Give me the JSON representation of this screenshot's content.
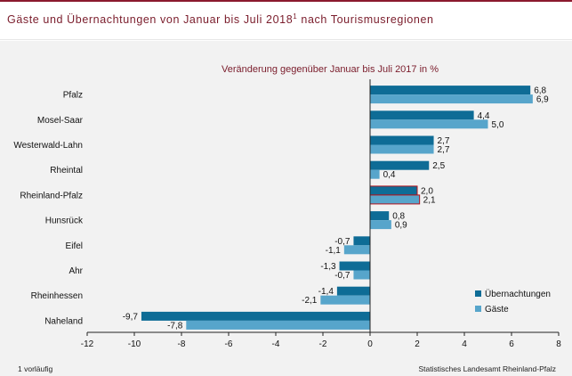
{
  "title_main": "Gäste und Übernachtungen von Januar bis Juli 2018",
  "title_sup": "1",
  "title_rest": " nach Tourismusregionen",
  "footnote": "1 vorläufig",
  "source": "Statistisches Landesamt Rheinland-Pfalz",
  "colors": {
    "overnight": "#0e6c96",
    "guests": "#57a5cb",
    "highlight_border": "#b5121b",
    "accent": "#7a1c2b"
  },
  "chart_data": {
    "type": "bar",
    "orientation": "horizontal",
    "title": "Veränderung gegenüber Januar bis Juli 2017 in %",
    "categories": [
      "Pfalz",
      "Mosel-Saar",
      "Westerwald-Lahn",
      "Rheintal",
      "Rheinland-Pfalz",
      "Hunsrück",
      "Eifel",
      "Ahr",
      "Rheinhessen",
      "Naheland"
    ],
    "series": [
      {
        "name": "Übernachtungen",
        "values": [
          6.8,
          4.4,
          2.7,
          2.5,
          2.0,
          0.8,
          -0.7,
          -1.3,
          -1.4,
          -9.7
        ],
        "labels": [
          "6,8",
          "4,4",
          "2,7",
          "2,5",
          "2,0",
          "0,8",
          "-0,7",
          "-1,3",
          "-1,4",
          "-9,7"
        ]
      },
      {
        "name": "Gäste",
        "values": [
          6.9,
          5.0,
          2.7,
          0.4,
          2.1,
          0.9,
          -1.1,
          -0.7,
          -2.1,
          -7.8
        ],
        "labels": [
          "6,9",
          "5,0",
          "2,7",
          "0,4",
          "2,1",
          "0,9",
          "-1,1",
          "-0,7",
          "-2,1",
          "-7,8"
        ]
      }
    ],
    "highlight_category": "Rheinland-Pfalz",
    "xlim": [
      -12,
      8
    ],
    "x_ticks": [
      -12,
      -10,
      -8,
      -6,
      -4,
      -2,
      0,
      2,
      4,
      6,
      8
    ],
    "grid": false,
    "legend_position": "bottom-right"
  }
}
